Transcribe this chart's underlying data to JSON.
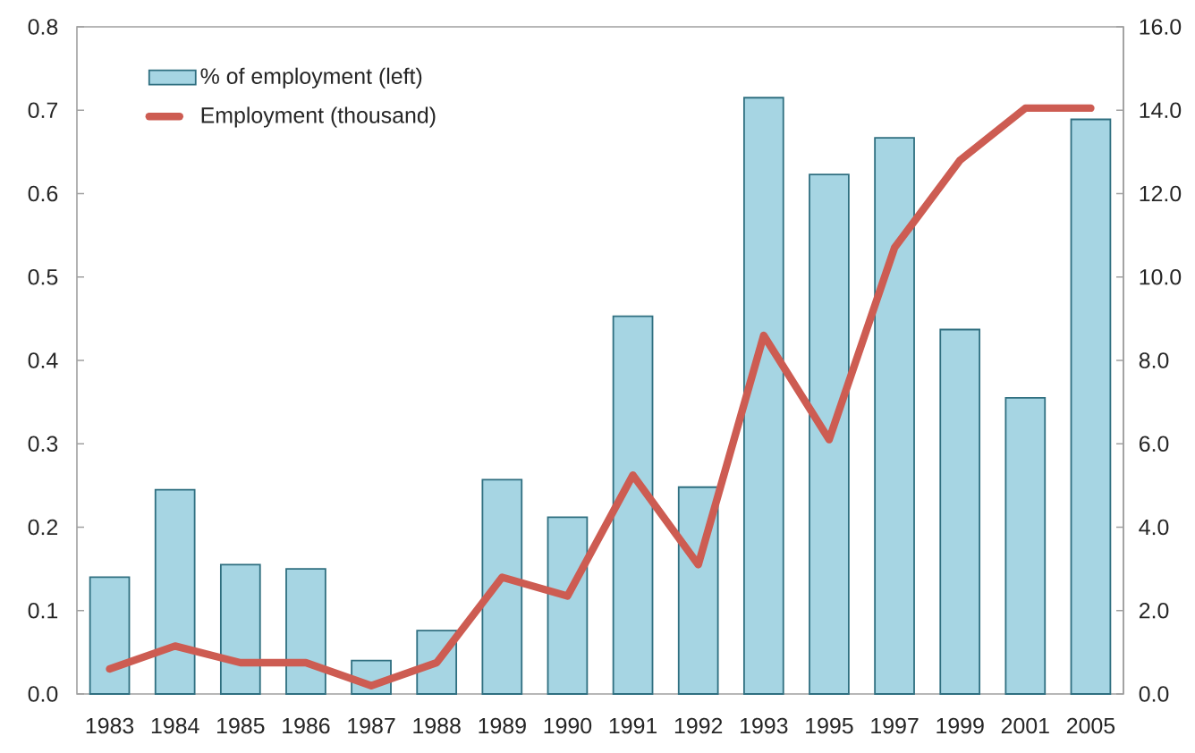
{
  "chart_data": {
    "type": "bar",
    "categories": [
      "1983",
      "1984",
      "1985",
      "1986",
      "1987",
      "1988",
      "1989",
      "1990",
      "1991",
      "1992",
      "1993",
      "1995",
      "1997",
      "1999",
      "2001",
      "2005"
    ],
    "series": [
      {
        "name": "% of employment (left)",
        "color": "#a6d5e3",
        "values": [
          0.14,
          0.245,
          0.155,
          0.15,
          0.04,
          0.076,
          0.257,
          0.212,
          0.453,
          0.248,
          0.715,
          0.623,
          0.667,
          0.437,
          0.355,
          0.689
        ]
      },
      {
        "name": "Employment (thousand)",
        "type": "line",
        "axis": "y2",
        "color": "#cd5c52",
        "values": [
          0.6,
          1.15,
          0.75,
          0.75,
          0.2,
          0.75,
          2.8,
          2.35,
          5.25,
          3.1,
          8.6,
          6.1,
          10.7,
          12.8,
          14.05,
          14.05
        ]
      }
    ],
    "ylim": [
      0,
      0.8
    ],
    "yticks": [
      {
        "value": 0,
        "label": "0.0"
      },
      0.1,
      0.2,
      0.3,
      0.4,
      0.5,
      0.6,
      0.7,
      0.8
    ],
    "y2lim": [
      0,
      16
    ],
    "y2ticks": [
      {
        "value": 0,
        "label": "0.0"
      },
      {
        "value": 2,
        "label": "2.0"
      },
      {
        "value": 4,
        "label": "4.0"
      },
      {
        "value": 6,
        "label": "6.0"
      },
      {
        "value": 8,
        "label": "8.0"
      },
      {
        "value": 10,
        "label": "10.0"
      },
      {
        "value": 12,
        "label": "12.0"
      },
      {
        "value": 14,
        "label": "14.0"
      },
      {
        "value": 16,
        "label": "16.0"
      }
    ],
    "legend": "top left"
  }
}
